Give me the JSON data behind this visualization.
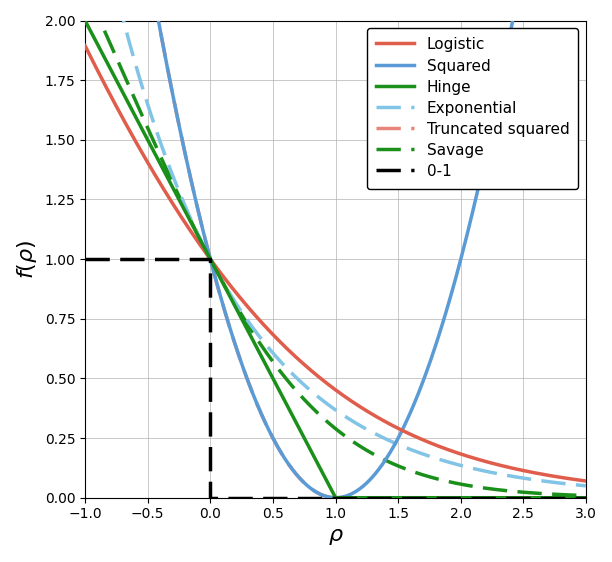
{
  "title": "",
  "xlabel": "\\rho",
  "ylabel": "f(\\rho)",
  "xlim": [
    -1.0,
    3.0
  ],
  "ylim": [
    0.0,
    2.0
  ],
  "xticks": [
    -1.0,
    -0.5,
    0.0,
    0.5,
    1.0,
    1.5,
    2.0,
    2.5,
    3.0
  ],
  "yticks": [
    0.0,
    0.25,
    0.5,
    0.75,
    1.0,
    1.25,
    1.5,
    1.75,
    2.0
  ],
  "figsize": [
    6.12,
    5.62
  ],
  "dpi": 100,
  "colors": {
    "logistic": "#e05c4b",
    "squared": "#5b9bd5",
    "hinge": "#1a8f1a",
    "exponential": "#82c4e6",
    "truncated_squared": "#e8857a",
    "savage": "#1a8f1a",
    "zero_one": "#000000"
  },
  "linewidth": 2.5,
  "legend_fontsize": 11,
  "legend_entries": [
    "Logistic",
    "Squared",
    "Hinge",
    "Exponential",
    "Truncated squared",
    "Savage",
    "0-1"
  ]
}
